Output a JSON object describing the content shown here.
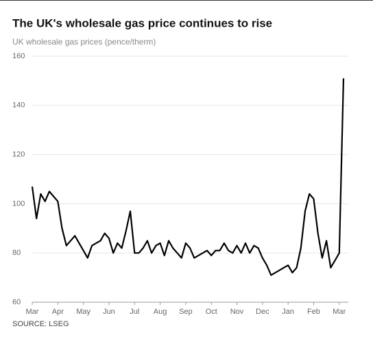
{
  "chart_data": {
    "type": "line",
    "title": "The UK's wholesale gas price continues to rise",
    "subtitle": "UK wholesale gas prices (pence/therm)",
    "source": "SOURCE: LSEG",
    "categories": [
      "Mar",
      null,
      null,
      null,
      null,
      null,
      "Apr",
      null,
      null,
      null,
      null,
      null,
      "May",
      null,
      null,
      null,
      null,
      null,
      "Jun",
      null,
      null,
      null,
      null,
      null,
      "Jul",
      null,
      null,
      null,
      null,
      null,
      "Aug",
      null,
      null,
      null,
      null,
      null,
      "Sep",
      null,
      null,
      null,
      null,
      null,
      "Oct",
      null,
      null,
      null,
      null,
      null,
      "Nov",
      null,
      null,
      null,
      null,
      null,
      "Dec",
      null,
      null,
      null,
      null,
      null,
      "Jan",
      null,
      null,
      null,
      null,
      null,
      "Feb",
      null,
      null,
      null,
      null,
      null,
      "Mar",
      null
    ],
    "series": [
      {
        "name": "UK wholesale gas price",
        "color": "#000000",
        "values": [
          107,
          94,
          104,
          101,
          105,
          103,
          101,
          90,
          83,
          85,
          87,
          84,
          81,
          78,
          83,
          84,
          85,
          88,
          86,
          80,
          84,
          82,
          89,
          97,
          80,
          80,
          82,
          85,
          80,
          83,
          84,
          79,
          85,
          82,
          80,
          78,
          84,
          82,
          78,
          79,
          80,
          81,
          79,
          81,
          81,
          84,
          81,
          80,
          83,
          80,
          84,
          80,
          83,
          82,
          78,
          75,
          71,
          72,
          73,
          74,
          75,
          72,
          74,
          82,
          97,
          104,
          102,
          88,
          78,
          85,
          74,
          77,
          80,
          151
        ]
      }
    ],
    "ylim": [
      60,
      160
    ],
    "yticks": [
      60,
      80,
      100,
      120,
      140,
      160
    ],
    "grid": true
  }
}
